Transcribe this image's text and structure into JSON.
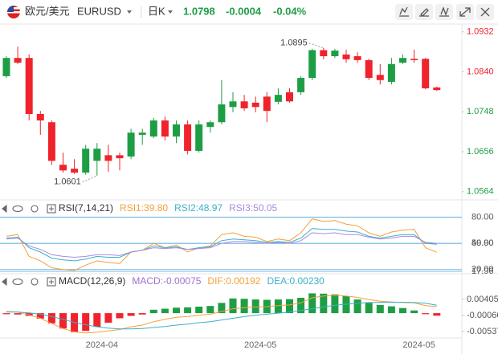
{
  "header": {
    "pair": "欧元/美元",
    "symbol": "EURUSD",
    "period": "日K",
    "price": "1.0798",
    "change": "-0.0004",
    "change_pct": "-0.04%"
  },
  "chart_data": [
    {
      "type": "candlestick",
      "categories": [
        null,
        null,
        null,
        null,
        null,
        null,
        null,
        null,
        "2024-04",
        null,
        null,
        null,
        null,
        null,
        null,
        null,
        null,
        null,
        null,
        null,
        null,
        null,
        "2024-05",
        null,
        null,
        null,
        null,
        null,
        null,
        null,
        null,
        null,
        null,
        null,
        null,
        null,
        "2024-05",
        null,
        null
      ],
      "open": [
        1.083,
        1.0872,
        1.0872,
        1.0743,
        1.0724,
        1.0626,
        1.0617,
        1.0608,
        1.0635,
        1.0648,
        1.0648,
        1.0645,
        1.0695,
        1.0691,
        1.0728,
        1.0691,
        1.0719,
        1.0658,
        1.0713,
        1.0724,
        1.0759,
        1.0772,
        1.0769,
        1.0783,
        1.0771,
        1.0793,
        1.0793,
        1.0826,
        1.089,
        1.0876,
        1.088,
        1.0876,
        1.0867,
        1.0833,
        1.0817,
        1.0861,
        1.087,
        1.087,
        1.0804
      ],
      "high": [
        1.0876,
        1.0898,
        1.088,
        1.075,
        1.0728,
        1.0654,
        1.0639,
        1.0672,
        1.0676,
        1.0672,
        1.0654,
        1.0709,
        1.0709,
        1.0734,
        1.0737,
        1.0728,
        1.0728,
        1.0728,
        1.0728,
        1.0821,
        1.0793,
        1.0787,
        1.0783,
        1.0793,
        1.0802,
        1.0802,
        1.083,
        1.0893,
        1.0895,
        1.0893,
        1.0891,
        1.0885,
        1.087,
        1.0858,
        1.0872,
        1.088,
        1.0891,
        1.0872,
        1.0806
      ],
      "low": [
        1.0826,
        1.0858,
        1.0728,
        1.0695,
        1.0626,
        1.0608,
        1.0605,
        1.0603,
        1.0601,
        1.061,
        1.0613,
        1.0639,
        1.0672,
        1.0687,
        1.0682,
        1.0676,
        1.065,
        1.0654,
        1.07,
        1.0719,
        1.0747,
        1.075,
        1.0747,
        1.0724,
        1.0765,
        1.0769,
        1.0787,
        1.0821,
        1.0869,
        1.0872,
        1.0861,
        1.0861,
        1.0821,
        1.0811,
        1.0811,
        1.0858,
        1.0861,
        1.08,
        1.0796
      ],
      "close": [
        1.0872,
        1.0861,
        1.0743,
        1.0728,
        1.0635,
        1.0613,
        1.0608,
        1.0663,
        1.0663,
        1.0635,
        1.0641,
        1.07,
        1.07,
        1.0728,
        1.0691,
        1.0719,
        1.0658,
        1.0719,
        1.0724,
        1.0765,
        1.0772,
        1.0756,
        1.0759,
        1.075,
        1.0787,
        1.0772,
        1.0826,
        1.089,
        1.0876,
        1.0889,
        1.0869,
        1.0867,
        1.0826,
        1.0821,
        1.0858,
        1.0872,
        1.0867,
        1.0802,
        1.0798
      ],
      "up_color": "#1e9e44",
      "down_color": "#f0232d",
      "ylim": [
        1.0547,
        1.095
      ],
      "yticks": [
        1.0932,
        {
          "value": 1.084,
          "label": "1.0840"
        },
        1.0748,
        1.0656,
        1.0564
      ],
      "annotations": [
        1.0895,
        1.0601
      ]
    },
    {
      "type": "line",
      "title": "RSI(7,14,21)",
      "series": [
        {
          "name": "RSI1:39.80",
          "color": "#f5a03a",
          "values": [
            58,
            60,
            35,
            30,
            22,
            20,
            19,
            25,
            30,
            28,
            27,
            40,
            42,
            50,
            45,
            48,
            40,
            45,
            47,
            60,
            62,
            58,
            57,
            52,
            55,
            53,
            62,
            78,
            75,
            76,
            72,
            70,
            62,
            58,
            63,
            65,
            66,
            45,
            39.8
          ]
        },
        {
          "name": "RSI2:48.97",
          "color": "#3cb0c8",
          "values": [
            56,
            57,
            45,
            40,
            33,
            31,
            30,
            32,
            35,
            34,
            34,
            40,
            42,
            47,
            45,
            46,
            43,
            45,
            46,
            53,
            55,
            54,
            53,
            51,
            52,
            51,
            56,
            67,
            66,
            66,
            64,
            63,
            58,
            56,
            58,
            60,
            60,
            50,
            48.97
          ]
        },
        {
          "name": "RSI3:50.05",
          "color": "#a98be0",
          "values": [
            55,
            56,
            47,
            43,
            37,
            35,
            34,
            35,
            37,
            37,
            36,
            40,
            42,
            45,
            44,
            45,
            43,
            44,
            45,
            50,
            52,
            52,
            51,
            50,
            51,
            50,
            53,
            62,
            61,
            62,
            60,
            60,
            57,
            55,
            56,
            58,
            58,
            51,
            50.05
          ]
        }
      ],
      "ylim": [
        17.96,
        85
      ],
      "yticks": [
        {
          "value": 80,
          "label": "80.00"
        },
        {
          "value": 50,
          "label": "50.00"
        },
        {
          "value": 49.9,
          "label": "49.90"
        },
        {
          "value": 20,
          "label": "20.00"
        },
        {
          "value": 17.96,
          "label": "17.96"
        }
      ],
      "grid_color": "#4aa3df"
    },
    {
      "type": "macd",
      "title": "MACD(12,26,9)",
      "series": [
        {
          "name": "MACD:-0.00075",
          "kind": "bar",
          "color": "#1e9e44",
          "negative_color": "#f0232d",
          "legend_color": "#a070d0",
          "values": [
            -0.0003,
            -0.0004,
            -0.0008,
            -0.0016,
            -0.003,
            -0.0045,
            -0.0056,
            -0.0052,
            -0.004,
            -0.0028,
            -0.0015,
            -0.0008,
            -0.0004,
            0.001,
            0.0013,
            0.0016,
            0.0017,
            0.0019,
            0.0021,
            0.003,
            0.0043,
            0.0042,
            0.004,
            0.0039,
            0.004,
            0.0041,
            0.0045,
            0.0058,
            0.0057,
            0.0055,
            0.005,
            0.004,
            0.003,
            0.0024,
            0.002,
            0.0015,
            0.0008,
            -0.0003,
            -0.00075
          ]
        },
        {
          "name": "DIF:0.00192",
          "kind": "line",
          "color": "#f5a03a",
          "values": [
            0.0005,
            0.0003,
            -0.0005,
            -0.0015,
            -0.003,
            -0.0045,
            -0.0055,
            -0.0058,
            -0.0056,
            -0.0052,
            -0.0048,
            -0.004,
            -0.0035,
            -0.0025,
            -0.0018,
            -0.0012,
            -0.001,
            -0.0006,
            -0.0003,
            0.0005,
            0.0013,
            0.0016,
            0.0018,
            0.0019,
            0.0022,
            0.0024,
            0.003,
            0.0045,
            0.005,
            0.0052,
            0.005,
            0.0046,
            0.004,
            0.0035,
            0.0033,
            0.0031,
            0.003,
            0.0022,
            0.00192
          ]
        },
        {
          "name": "DEA:0.00230",
          "kind": "line",
          "color": "#3cb0c8",
          "values": [
            0.0003,
            0.0003,
            0.0001,
            -0.0003,
            -0.001,
            -0.0018,
            -0.0027,
            -0.0034,
            -0.004,
            -0.0044,
            -0.0046,
            -0.0046,
            -0.0045,
            -0.0042,
            -0.0039,
            -0.0035,
            -0.0032,
            -0.0028,
            -0.0025,
            -0.002,
            -0.0015,
            -0.001,
            -0.0006,
            -0.0003,
            0,
            0.0003,
            0.0008,
            0.0013,
            0.0018,
            0.0023,
            0.0026,
            0.0029,
            0.0031,
            0.0032,
            0.0032,
            0.0032,
            0.0031,
            0.0029,
            0.0023
          ]
        }
      ],
      "ylim": [
        -0.0082,
        0.0059
      ],
      "yticks": [
        0.00405,
        -0.00066,
        -0.00537
      ]
    }
  ]
}
